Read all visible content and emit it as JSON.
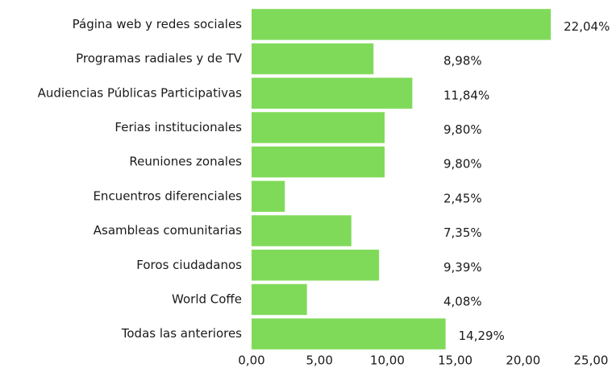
{
  "chart_data": {
    "type": "bar",
    "orientation": "horizontal",
    "categories": [
      "Página web y redes sociales",
      "Programas radiales y de TV",
      "Audiencias Públicas Participativas",
      "Ferias institucionales",
      "Reuniones zonales",
      "Encuentros diferenciales",
      "Asambleas comunitarias",
      "Foros ciudadanos",
      "World Coffe",
      "Todas las anteriores"
    ],
    "values": [
      22.04,
      8.98,
      11.84,
      9.8,
      9.8,
      2.45,
      7.35,
      9.39,
      4.08,
      14.29
    ],
    "value_labels": [
      "22,04%",
      "8,98%",
      "11,84%",
      "9,80%",
      "9,80%",
      "2,45%",
      "7,35%",
      "9,39%",
      "4,08%",
      "14,29%"
    ],
    "color": "#80da5a",
    "xlim": [
      0,
      25
    ],
    "xticks": [
      {
        "value": 0,
        "label": "0,00"
      },
      {
        "value": 5,
        "label": "5,00"
      },
      {
        "value": 10,
        "label": "10,00"
      },
      {
        "value": 15,
        "label": "15,00"
      },
      {
        "value": 20,
        "label": "20,00"
      },
      {
        "value": 25,
        "label": "25,00"
      }
    ],
    "grid": false
  }
}
